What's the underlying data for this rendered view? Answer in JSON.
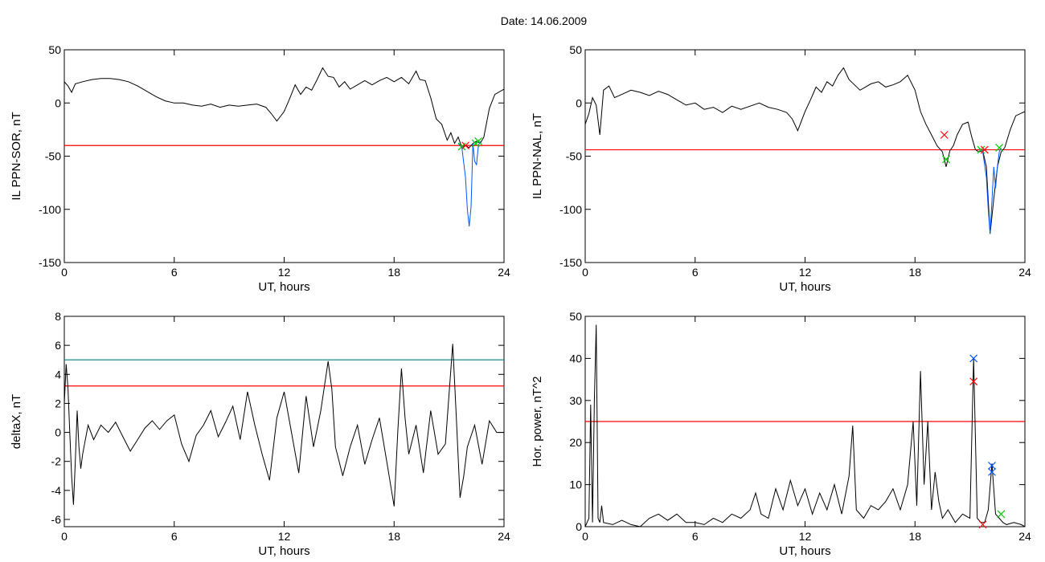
{
  "title": "Date:  14.06.2009",
  "chart_data": [
    {
      "type": "line",
      "xlabel": "UT, hours",
      "ylabel": "IL PPN-SOR, nT",
      "xlim": [
        0,
        24
      ],
      "ylim": [
        -150,
        50
      ],
      "xticks": [
        0,
        6,
        12,
        18,
        24
      ],
      "yticks": [
        -150,
        -100,
        -50,
        0,
        50
      ],
      "hlines": [
        {
          "value": -40,
          "color": "#ff0000"
        }
      ],
      "series": [
        {
          "color": "#000000",
          "x": [
            0,
            0.2,
            0.4,
            0.6,
            1,
            1.5,
            2,
            2.5,
            3,
            3.5,
            4,
            4.5,
            5,
            5.5,
            6,
            6.5,
            7,
            7.5,
            8,
            8.5,
            9,
            9.5,
            10,
            10.5,
            11,
            11.3,
            11.6,
            12,
            12.3,
            12.6,
            12.9,
            13.2,
            13.5,
            13.8,
            14.1,
            14.4,
            14.7,
            15,
            15.3,
            15.6,
            16,
            16.4,
            16.8,
            17.2,
            17.6,
            18,
            18.4,
            18.8,
            19.2,
            19.4,
            19.7,
            20,
            20.3,
            20.6,
            20.9,
            21.1,
            21.3,
            21.5,
            21.7,
            21.9,
            22.1,
            22.3,
            22.5,
            22.7,
            22.9,
            23.2,
            23.5,
            24
          ],
          "y": [
            20,
            16,
            10,
            18,
            20,
            22,
            23,
            23,
            22,
            20,
            16,
            11,
            6,
            2,
            0,
            0,
            -2,
            -3,
            -1,
            -4,
            -2,
            -3,
            -2,
            -1,
            -4,
            -10,
            -17,
            -8,
            4,
            17,
            8,
            15,
            12,
            22,
            33,
            25,
            24,
            15,
            20,
            13,
            17,
            21,
            17,
            21,
            24,
            20,
            24,
            18,
            30,
            22,
            21,
            5,
            -15,
            -20,
            -35,
            -28,
            -38,
            -32,
            -42,
            -40,
            -42,
            -38,
            -36,
            -38,
            -32,
            -5,
            8,
            13
          ]
        },
        {
          "color": "#0055ff",
          "x": [
            21.5,
            21.7,
            21.9,
            22.0,
            22.1,
            22.2,
            22.3,
            22.4,
            22.5,
            22.6,
            22.7
          ],
          "y": [
            -38,
            -42,
            -70,
            -100,
            -116,
            -98,
            -38,
            -55,
            -58,
            -40,
            -36
          ]
        }
      ],
      "markers": [
        {
          "x": 21.7,
          "y": -41,
          "color": "#00cc00"
        },
        {
          "x": 22.45,
          "y": -38,
          "color": "#00cc00"
        },
        {
          "x": 22.6,
          "y": -36,
          "color": "#00cc00"
        },
        {
          "x": 21.9,
          "y": -40,
          "color": "#ff0000"
        }
      ]
    },
    {
      "type": "line",
      "xlabel": "UT, hours",
      "ylabel": "IL PPN-NAL, nT",
      "xlim": [
        0,
        24
      ],
      "ylim": [
        -150,
        50
      ],
      "xticks": [
        0,
        6,
        12,
        18,
        24
      ],
      "yticks": [
        -150,
        -100,
        -50,
        0,
        50
      ],
      "hlines": [
        {
          "value": -44,
          "color": "#ff0000"
        }
      ],
      "series": [
        {
          "color": "#000000",
          "x": [
            0,
            0.2,
            0.4,
            0.6,
            0.8,
            1,
            1.3,
            1.6,
            2,
            2.5,
            3,
            3.5,
            4,
            4.5,
            5,
            5.5,
            6,
            6.5,
            7,
            7.5,
            8,
            8.5,
            9,
            9.5,
            10,
            10.5,
            11,
            11.3,
            11.6,
            12,
            12.3,
            12.6,
            12.9,
            13.2,
            13.5,
            13.8,
            14.1,
            14.4,
            14.7,
            15,
            15.3,
            15.6,
            16,
            16.4,
            16.8,
            17.2,
            17.6,
            18,
            18.3,
            18.6,
            18.9,
            19.2,
            19.5,
            19.7,
            19.9,
            20.1,
            20.3,
            20.6,
            20.9,
            21.1,
            21.3,
            21.5,
            21.7,
            21.9,
            22.1,
            22.3,
            22.5,
            22.7,
            22.9,
            23.2,
            23.5,
            24
          ],
          "y": [
            -20,
            -10,
            5,
            -2,
            -30,
            12,
            16,
            5,
            8,
            12,
            10,
            7,
            11,
            8,
            3,
            -2,
            0,
            -6,
            -4,
            -9,
            -3,
            -6,
            -3,
            0,
            -4,
            -6,
            -9,
            -15,
            -26,
            -8,
            3,
            15,
            10,
            20,
            16,
            26,
            33,
            22,
            17,
            12,
            15,
            18,
            20,
            15,
            17,
            20,
            26,
            12,
            -8,
            -20,
            -30,
            -40,
            -46,
            -60,
            -45,
            -40,
            -30,
            -20,
            -18,
            -32,
            -44,
            -46,
            -45,
            -60,
            -123,
            -90,
            -60,
            -46,
            -42,
            -25,
            -12,
            -8
          ]
        },
        {
          "color": "#0055ff",
          "x": [
            21.5,
            21.7,
            21.9,
            22.0,
            22.1,
            22.2,
            22.3,
            22.4,
            22.5,
            22.6,
            22.7
          ],
          "y": [
            -43,
            -46,
            -70,
            -100,
            -123,
            -92,
            -60,
            -80,
            -60,
            -46,
            -42
          ]
        }
      ],
      "markers": [
        {
          "x": 19.6,
          "y": -30,
          "color": "#ff0000"
        },
        {
          "x": 19.7,
          "y": -53,
          "color": "#00cc00"
        },
        {
          "x": 21.6,
          "y": -44,
          "color": "#00cc00"
        },
        {
          "x": 21.8,
          "y": -44,
          "color": "#ff0000"
        },
        {
          "x": 22.6,
          "y": -42,
          "color": "#00cc00"
        }
      ]
    },
    {
      "type": "line",
      "xlabel": "UT, hours",
      "ylabel": "deltaX, nT",
      "xlim": [
        0,
        24
      ],
      "ylim": [
        -6.5,
        8
      ],
      "xticks": [
        0,
        6,
        12,
        18,
        24
      ],
      "yticks": [
        -6,
        -4,
        -2,
        0,
        2,
        4,
        6,
        8
      ],
      "hlines": [
        {
          "value": 5,
          "color": "#008080"
        },
        {
          "value": 3.2,
          "color": "#ff0000"
        }
      ],
      "series": [
        {
          "color": "#000000",
          "x": [
            0,
            0.1,
            0.2,
            0.3,
            0.4,
            0.5,
            0.6,
            0.7,
            0.8,
            0.9,
            1.0,
            1.3,
            1.6,
            2.0,
            2.4,
            2.8,
            3.2,
            3.6,
            4.0,
            4.4,
            4.8,
            5.2,
            5.6,
            6.0,
            6.4,
            6.8,
            7.2,
            7.6,
            8.0,
            8.4,
            8.8,
            9.2,
            9.6,
            10.0,
            10.4,
            10.8,
            11.2,
            11.6,
            12.0,
            12.4,
            12.8,
            13.2,
            13.6,
            14.0,
            14.4,
            14.6,
            14.8,
            15.2,
            15.6,
            16.0,
            16.4,
            16.8,
            17.2,
            17.6,
            18.0,
            18.2,
            18.4,
            18.6,
            18.8,
            19.2,
            19.6,
            20.0,
            20.4,
            20.8,
            21.2,
            21.4,
            21.6,
            21.8,
            22.0,
            22.4,
            22.8,
            23.2,
            23.6,
            24.0
          ],
          "y": [
            2,
            4.7,
            3,
            0,
            -3,
            -5,
            -2,
            1.5,
            -1,
            -2.5,
            -1.5,
            0.5,
            -0.5,
            0.5,
            0,
            0.7,
            -0.3,
            -1.3,
            -0.5,
            0.3,
            0.8,
            0.2,
            0.8,
            1.2,
            -0.8,
            -2,
            -0.2,
            0.5,
            1.5,
            -0.3,
            0.7,
            1.8,
            -0.5,
            2.8,
            0.5,
            -1.5,
            -3.3,
            1.0,
            2.8,
            0,
            -2.8,
            2.5,
            -1,
            1.5,
            4.9,
            3,
            -1,
            -3,
            -1,
            0.5,
            -2.2,
            -0.5,
            1,
            -2,
            -5.1,
            0,
            4.4,
            1,
            -1.5,
            0.5,
            -2.8,
            1.5,
            -1.5,
            -0.8,
            6.1,
            1,
            -4.5,
            -3,
            -1,
            0.5,
            -2.2,
            0.8,
            0,
            0
          ]
        }
      ],
      "markers": []
    },
    {
      "type": "line",
      "xlabel": "UT, hours",
      "ylabel": "Hor. power, nT^2",
      "xlim": [
        0,
        24
      ],
      "ylim": [
        0,
        50
      ],
      "xticks": [
        0,
        6,
        12,
        18,
        24
      ],
      "yticks": [
        0,
        10,
        20,
        30,
        40,
        50
      ],
      "hlines": [
        {
          "value": 25,
          "color": "#ff0000"
        }
      ],
      "series": [
        {
          "color": "#000000",
          "x": [
            0,
            0.2,
            0.3,
            0.4,
            0.5,
            0.6,
            0.7,
            0.8,
            0.9,
            1.0,
            1.5,
            2,
            2.5,
            3,
            3.5,
            4,
            4.5,
            5,
            5.5,
            6,
            6.5,
            7,
            7.5,
            8,
            8.5,
            9,
            9.3,
            9.6,
            10,
            10.4,
            10.8,
            11.2,
            11.6,
            12,
            12.4,
            12.8,
            13.2,
            13.6,
            14,
            14.4,
            14.6,
            14.8,
            15.2,
            15.6,
            16,
            16.4,
            16.8,
            17.2,
            17.6,
            17.9,
            18.1,
            18.3,
            18.5,
            18.7,
            18.9,
            19.1,
            19.3,
            19.5,
            19.8,
            20.2,
            20.6,
            21.0,
            21.2,
            21.4,
            21.6,
            21.8,
            22.0,
            22.2,
            22.4,
            22.6,
            22.8,
            23.0,
            23.4,
            23.8,
            24.0
          ],
          "y": [
            0,
            2,
            29,
            1,
            30,
            48,
            2,
            1,
            5,
            1,
            0.5,
            1.5,
            0.5,
            0,
            2,
            3,
            1.5,
            3,
            1,
            1,
            0.5,
            2,
            1,
            3,
            2,
            4,
            8,
            3,
            2,
            9,
            4,
            11,
            5,
            9,
            3,
            8,
            4,
            10,
            3,
            12,
            24,
            4,
            2,
            5,
            4,
            6,
            9,
            4,
            10,
            25,
            5,
            37,
            10,
            25,
            4,
            13,
            6,
            2,
            4,
            1,
            3,
            2,
            40,
            2,
            1,
            1,
            4,
            15,
            3,
            2,
            1,
            0.5,
            1,
            0.5,
            0
          ]
        }
      ],
      "markers": [
        {
          "x": 21.2,
          "y": 40,
          "color": "#0055ff"
        },
        {
          "x": 21.2,
          "y": 34.5,
          "color": "#ff0000"
        },
        {
          "x": 22.2,
          "y": 14.5,
          "color": "#0055ff"
        },
        {
          "x": 22.2,
          "y": 13,
          "color": "#0055ff"
        },
        {
          "x": 22.7,
          "y": 3,
          "color": "#00cc00"
        },
        {
          "x": 21.7,
          "y": 0.5,
          "color": "#ff0000"
        }
      ]
    }
  ]
}
